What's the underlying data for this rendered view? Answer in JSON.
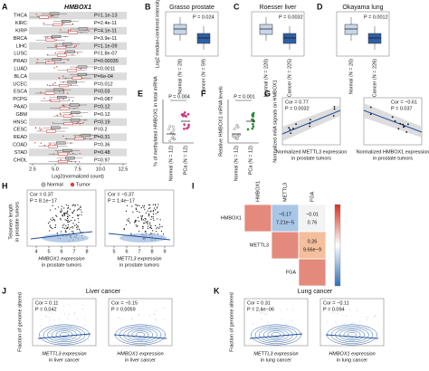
{
  "figure": {
    "A": {
      "label": "A",
      "title": "HMBOX1",
      "cancer_types": [
        "THCA",
        "KIRC",
        "KIRP",
        "BRCA",
        "LIHC",
        "LUSC",
        "PRAD",
        "LUAD",
        "BLCA",
        "UCEC",
        "ESCA",
        "PCPG",
        "PAAD",
        "GBM",
        "HNSC",
        "CESC",
        "READ",
        "COAD",
        "STAD",
        "CHOL"
      ],
      "p_values": [
        "P=1.1e-13",
        "P=2.4e-11",
        "P=4.1e-11",
        "P=3.9e-11",
        "P=1.1e-09",
        "P=1.8e-07",
        "P=0.00035",
        "P=0.0011",
        "P=6e-04",
        "P=0.012",
        "P=0.03",
        "P=0.087",
        "P=0.12",
        "P=0.12",
        "P=0.19",
        "P=0.2",
        "P=0.31",
        "P=0.36",
        "P=0.48",
        "P=0.97"
      ],
      "x_ticks": [
        "2.5",
        "5.0",
        "7.5",
        "10.0",
        "12.5"
      ],
      "x_axis_label": "Log2(normalized count)",
      "legend": [
        "Normal",
        "Tumor"
      ]
    },
    "B": {
      "label": "B",
      "title": "Grasso prostate",
      "p_value": "P = 0.024",
      "y_axis_label": "Log2 median-centered intensity",
      "groups": [
        "Normal (N = 28)",
        "Cancer (N = 59)"
      ]
    },
    "C": {
      "label": "C",
      "title": "Roesser liver",
      "p_value": "P = 0.0032",
      "groups": [
        "Normal (N = 220)",
        "Cancer (N = 225)"
      ]
    },
    "D": {
      "label": "D",
      "title": "Okayama lung",
      "p_value": "P = 0.0012",
      "groups": [
        "Normal (N = 20)",
        "Cancer (N = 226)"
      ]
    },
    "E": {
      "label": "E",
      "p_value": "P = 0.004",
      "y_axis_label": "% of methylated HMBOX1 in total mRNA",
      "groups": [
        "Normal (N = 12)",
        "PCa (N = 12)"
      ]
    },
    "F": {
      "label": "F",
      "p_value": "P = 0.001",
      "y_axis_label": "Relative HMBOX1 mRNA levels",
      "groups": [
        "Normal (N = 12)",
        "PCa (N = 12)"
      ]
    },
    "G": {
      "label": "G",
      "y_axis_label": "Normalized m6A signals on HMBOX1",
      "plots": [
        {
          "stats": [
            "Cor = 0.77",
            "P = 0.0032"
          ],
          "x_axis_label": [
            "Normalized METTL3 expression",
            "in prostate tumors"
          ]
        },
        {
          "stats": [
            "Cor = −0.61",
            "P = 0.037"
          ],
          "x_axis_label": [
            "Normalized HMBOX1 expression",
            "in prostate tumors"
          ]
        }
      ]
    },
    "H": {
      "label": "H",
      "y_axis_label": [
        "Telomere length",
        "in prostate tumors"
      ],
      "plots": [
        {
          "stats": [
            "Cor = 0.37",
            "P = 8.1e−17"
          ],
          "x_ticks": [
            "4",
            "5",
            "6",
            "7",
            "8"
          ],
          "x_axis_label": [
            "HMBOX1 expression",
            "in prostate tumors"
          ]
        },
        {
          "stats": [
            "Cor = −0.37",
            "P = 1.4e−17"
          ],
          "x_ticks": [
            "5",
            "6",
            "7",
            "8",
            "9"
          ],
          "x_axis_label": [
            "METTL3 expression",
            "in prostate tumors"
          ]
        }
      ]
    },
    "I": {
      "label": "I",
      "genes": [
        "HMBOX1",
        "METTL3",
        "FGA"
      ],
      "cells": [
        {
          "cor": "−0.17",
          "p": "7.21e−5"
        },
        {
          "cor": "−0.01",
          "p": "0.76"
        },
        {
          "cor": "0.26",
          "p": "9.66e−9"
        }
      ]
    },
    "J": {
      "label": "J",
      "title": "Liver cancer",
      "y_axis_label": "Fraction of genome altered",
      "plots": [
        {
          "stats": [
            "Cor = 0.11",
            "P = 0.042"
          ],
          "x_axis_label": [
            "METTL3 expression",
            "in liver cancer"
          ]
        },
        {
          "stats": [
            "Cor = −0.15",
            "P = 0.0059"
          ],
          "x_axis_label": [
            "HMBOX1 expression",
            "in liver cancer"
          ]
        }
      ]
    },
    "K": {
      "label": "K",
      "title": "Lung cancer",
      "y_axis_label": "Fraction of genome altered",
      "plots": [
        {
          "stats": [
            "Cor = 0.31",
            "P = 2.4e−06"
          ],
          "x_axis_label": [
            "METTL3 expression",
            "in lung cancer"
          ]
        },
        {
          "stats": [
            "Cor = −0.11",
            "P = 0.094"
          ],
          "x_axis_label": [
            "HMBOX1 expression",
            "in lung cancer"
          ]
        }
      ]
    }
  }
}
